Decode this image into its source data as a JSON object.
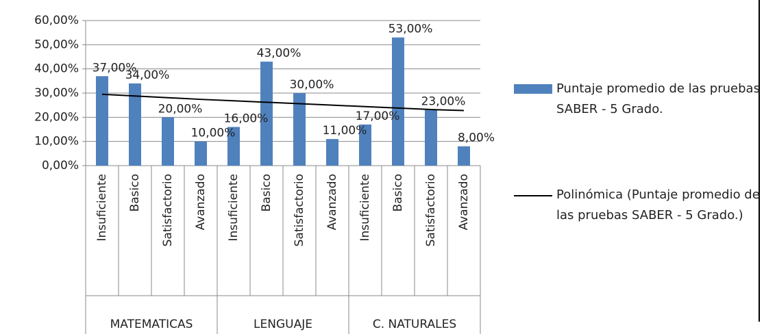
{
  "chart_data": {
    "type": "bar",
    "categories": [
      "Insuficiente",
      "Basico",
      "Satisfactorio",
      "Avanzado",
      "Insuficiente",
      "Basico",
      "Satisfactorio",
      "Avanzado",
      "Insuficiente",
      "Basico",
      "Satisfactorio",
      "Avanzado"
    ],
    "category_groups": [
      "MATEMATICAS",
      "LENGUAJE",
      "C. NATURALES"
    ],
    "series": [
      {
        "name": "Puntaje promedio de las pruebas SABER - 5 Grado.",
        "type": "bar",
        "color": "#4f81bd",
        "values": [
          37,
          34,
          20,
          10,
          16,
          43,
          30,
          11,
          17,
          53,
          23,
          8
        ],
        "value_labels": [
          "37,00%",
          "34,00%",
          "20,00%",
          "10,00%",
          "16,00%",
          "43,00%",
          "30,00%",
          "11,00%",
          "17,00%",
          "53,00%",
          "23,00%",
          "8,00%"
        ]
      },
      {
        "name": "Polinómica (Puntaje promedio de las pruebas SABER - 5 Grado.)",
        "type": "line",
        "color": "#000000",
        "values": [
          29.5,
          28.8,
          28.1,
          27.4,
          26.8,
          26.2,
          25.6,
          25,
          24.4,
          23.8,
          23.2,
          22.8
        ]
      }
    ],
    "ylim": [
      0,
      60
    ],
    "yticks": [
      {
        "value": 0,
        "label": "0,00%"
      },
      {
        "value": 10,
        "label": "10,00%"
      },
      {
        "value": 20,
        "label": "20,00%"
      },
      {
        "value": 30,
        "label": "30,00%"
      },
      {
        "value": 40,
        "label": "40,00%"
      },
      {
        "value": 50,
        "label": "50,00%"
      },
      {
        "value": 60,
        "label": "60,00%"
      }
    ],
    "grid": true
  }
}
